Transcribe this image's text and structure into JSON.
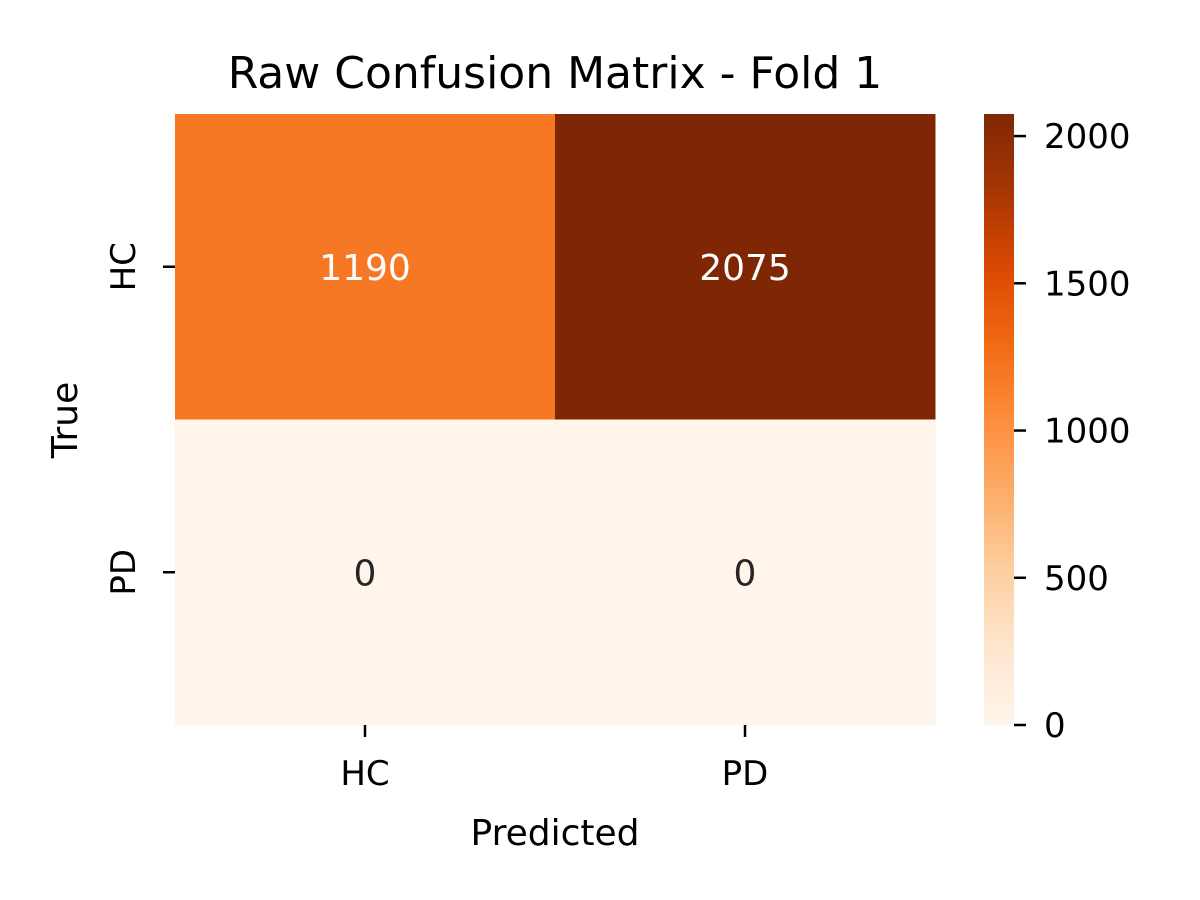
{
  "chart_data": {
    "type": "heatmap",
    "title": "Raw Confusion Matrix - Fold 1",
    "xlabel": "Predicted",
    "ylabel": "True",
    "x_categories": [
      "HC",
      "PD"
    ],
    "y_categories": [
      "HC",
      "PD"
    ],
    "values": [
      [
        1190,
        2075
      ],
      [
        0,
        0
      ]
    ],
    "colorbar": {
      "min": 0,
      "max": 2075,
      "ticks": [
        0,
        500,
        1000,
        1500,
        2000
      ],
      "tick_labels": [
        "0",
        "500",
        "1000",
        "1500",
        "2000"
      ],
      "colormap": "Oranges"
    },
    "text_color_light": "#ffffff",
    "text_color_dark": "#262626"
  }
}
